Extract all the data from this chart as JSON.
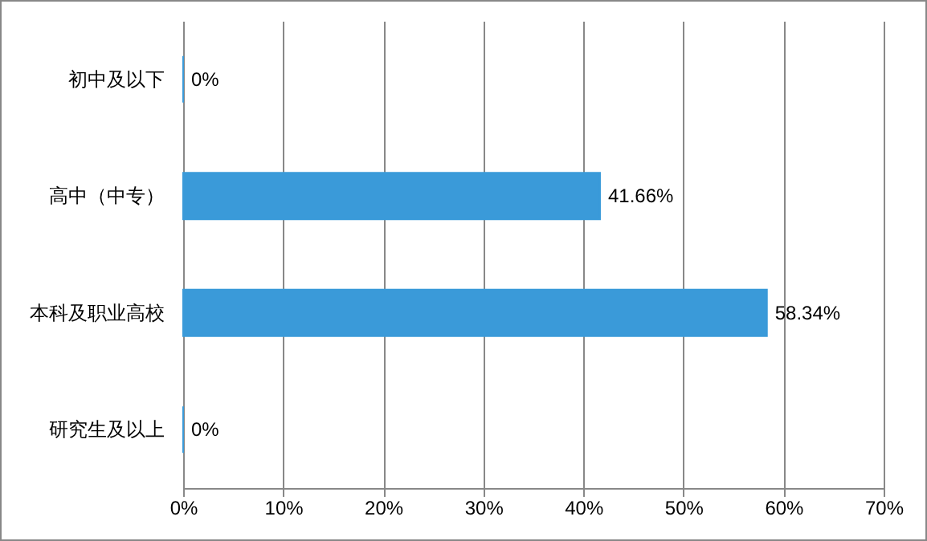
{
  "chart_data": {
    "type": "bar",
    "orientation": "horizontal",
    "categories": [
      "初中及以下",
      "高中（中专）",
      "本科及职业高校",
      "研究生及以上"
    ],
    "values": [
      0,
      41.66,
      58.34,
      0
    ],
    "value_labels": [
      "0%",
      "41.66%",
      "58.34%",
      "0%"
    ],
    "color": "#3a9ad9",
    "xlim": [
      0,
      70
    ],
    "xticks": [
      {
        "value": 0,
        "label": "0%"
      },
      {
        "value": 10,
        "label": "10%"
      },
      {
        "value": 20,
        "label": "20%"
      },
      {
        "value": 30,
        "label": "30%"
      },
      {
        "value": 40,
        "label": "40%"
      },
      {
        "value": 50,
        "label": "50%"
      },
      {
        "value": 60,
        "label": "60%"
      },
      {
        "value": 70,
        "label": "70%"
      }
    ],
    "grid": "x"
  }
}
